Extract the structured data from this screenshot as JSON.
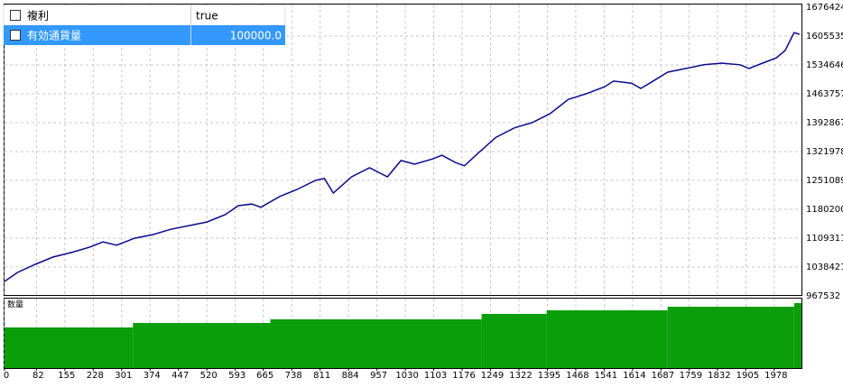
{
  "settings_table": {
    "rows": [
      [
        "複利",
        "true"
      ],
      [
        "有効通貨量",
        "100000.0"
      ]
    ]
  },
  "chart_data": [
    {
      "type": "line",
      "color": "#0a0a8c",
      "grid": true,
      "x": [
        0,
        33,
        79,
        125,
        172,
        218,
        253,
        288,
        334,
        381,
        427,
        474,
        520,
        567,
        601,
        636,
        659,
        706,
        752,
        799,
        822,
        845,
        892,
        938,
        984,
        1019,
        1054,
        1101,
        1124,
        1159,
        1182,
        1217,
        1263,
        1310,
        1356,
        1402,
        1449,
        1495,
        1542,
        1565,
        1611,
        1635,
        1658,
        1704,
        1751,
        1797,
        1843,
        1890,
        1913,
        1948,
        1983,
        2006,
        2029,
        2043
      ],
      "values": [
        1003000,
        1025000,
        1045000,
        1063000,
        1074000,
        1087000,
        1100000,
        1092000,
        1109000,
        1118000,
        1131000,
        1140000,
        1149000,
        1167000,
        1189000,
        1193000,
        1185000,
        1211000,
        1229000,
        1251000,
        1256000,
        1220000,
        1260000,
        1282000,
        1260000,
        1300000,
        1291000,
        1304000,
        1313000,
        1295000,
        1287000,
        1318000,
        1357000,
        1380000,
        1393000,
        1415000,
        1450000,
        1464000,
        1481000,
        1495000,
        1490000,
        1477000,
        1490000,
        1517000,
        1526000,
        1535000,
        1539000,
        1535000,
        1526000,
        1539000,
        1552000,
        1570000,
        1614000,
        1610000
      ],
      "xlim": [
        0,
        2048
      ],
      "ylim": [
        967532,
        1676424
      ],
      "yticks": [
        1676424,
        1605535,
        1534646,
        1463757,
        1392867,
        1321978,
        1251089,
        1180200,
        1109311,
        1038421,
        967532
      ]
    },
    {
      "type": "histogram",
      "title": "数量",
      "color": "#0a9e0a",
      "grid": true,
      "bins": [
        0,
        330,
        683,
        1226,
        1393,
        1704,
        2029,
        2048
      ],
      "values": [
        45,
        50,
        54,
        60,
        64,
        68,
        72
      ],
      "ylim": [
        0,
        78
      ],
      "xlim": [
        0,
        2048
      ],
      "xticks": [
        0,
        82,
        155,
        228,
        301,
        374,
        447,
        520,
        593,
        665,
        738,
        811,
        884,
        957,
        1030,
        1103,
        1176,
        1249,
        1322,
        1395,
        1468,
        1541,
        1614,
        1687,
        1759,
        1832,
        1905,
        1978
      ]
    }
  ]
}
